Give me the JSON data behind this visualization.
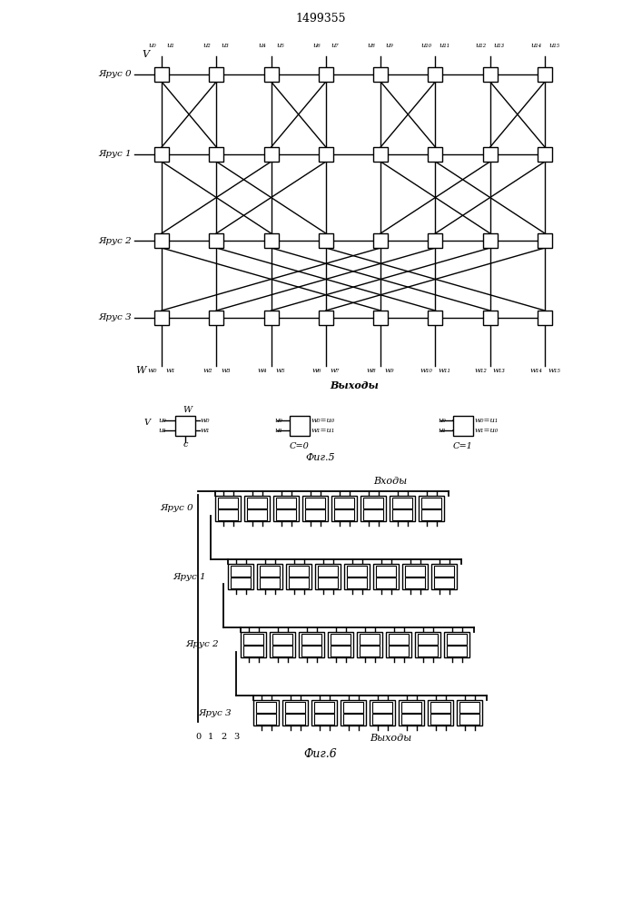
{
  "title": "1499355",
  "bg_color": "#ffffff",
  "fig_width": 7.07,
  "fig_height": 10.0,
  "fig5_title": "Фиг.5",
  "fig6_title": "Фиг.6",
  "tier_labels": [
    "Ярус 0",
    "Ярус 1",
    "Ярус 2",
    "Ярус 3"
  ],
  "v_label": "V",
  "w_label": "W",
  "outputs_label": "Выходы",
  "inputs_label": "Входы",
  "u_labels_top": [
    "u₀",
    "u₁",
    "u₂",
    "u₃",
    "u₄",
    "u₅",
    "u₆",
    "u₇",
    "u₈",
    "u₉",
    "u₁₀",
    "u₁₁",
    "u₁₂",
    "u₁₃",
    "u₁₄",
    "u₁₅"
  ],
  "w_labels_bot": [
    "w₀",
    "w₁",
    "w₂",
    "w₃",
    "w₄",
    "w₅",
    "w₆",
    "w₇",
    "w₈",
    "w₉",
    "w₁₀",
    "w₁₁",
    "w₁₂",
    "w₁₃",
    "w₁₄",
    "w₁₅"
  ],
  "c0_label": "C=0",
  "c1_label": "C=1",
  "c_label": "c"
}
